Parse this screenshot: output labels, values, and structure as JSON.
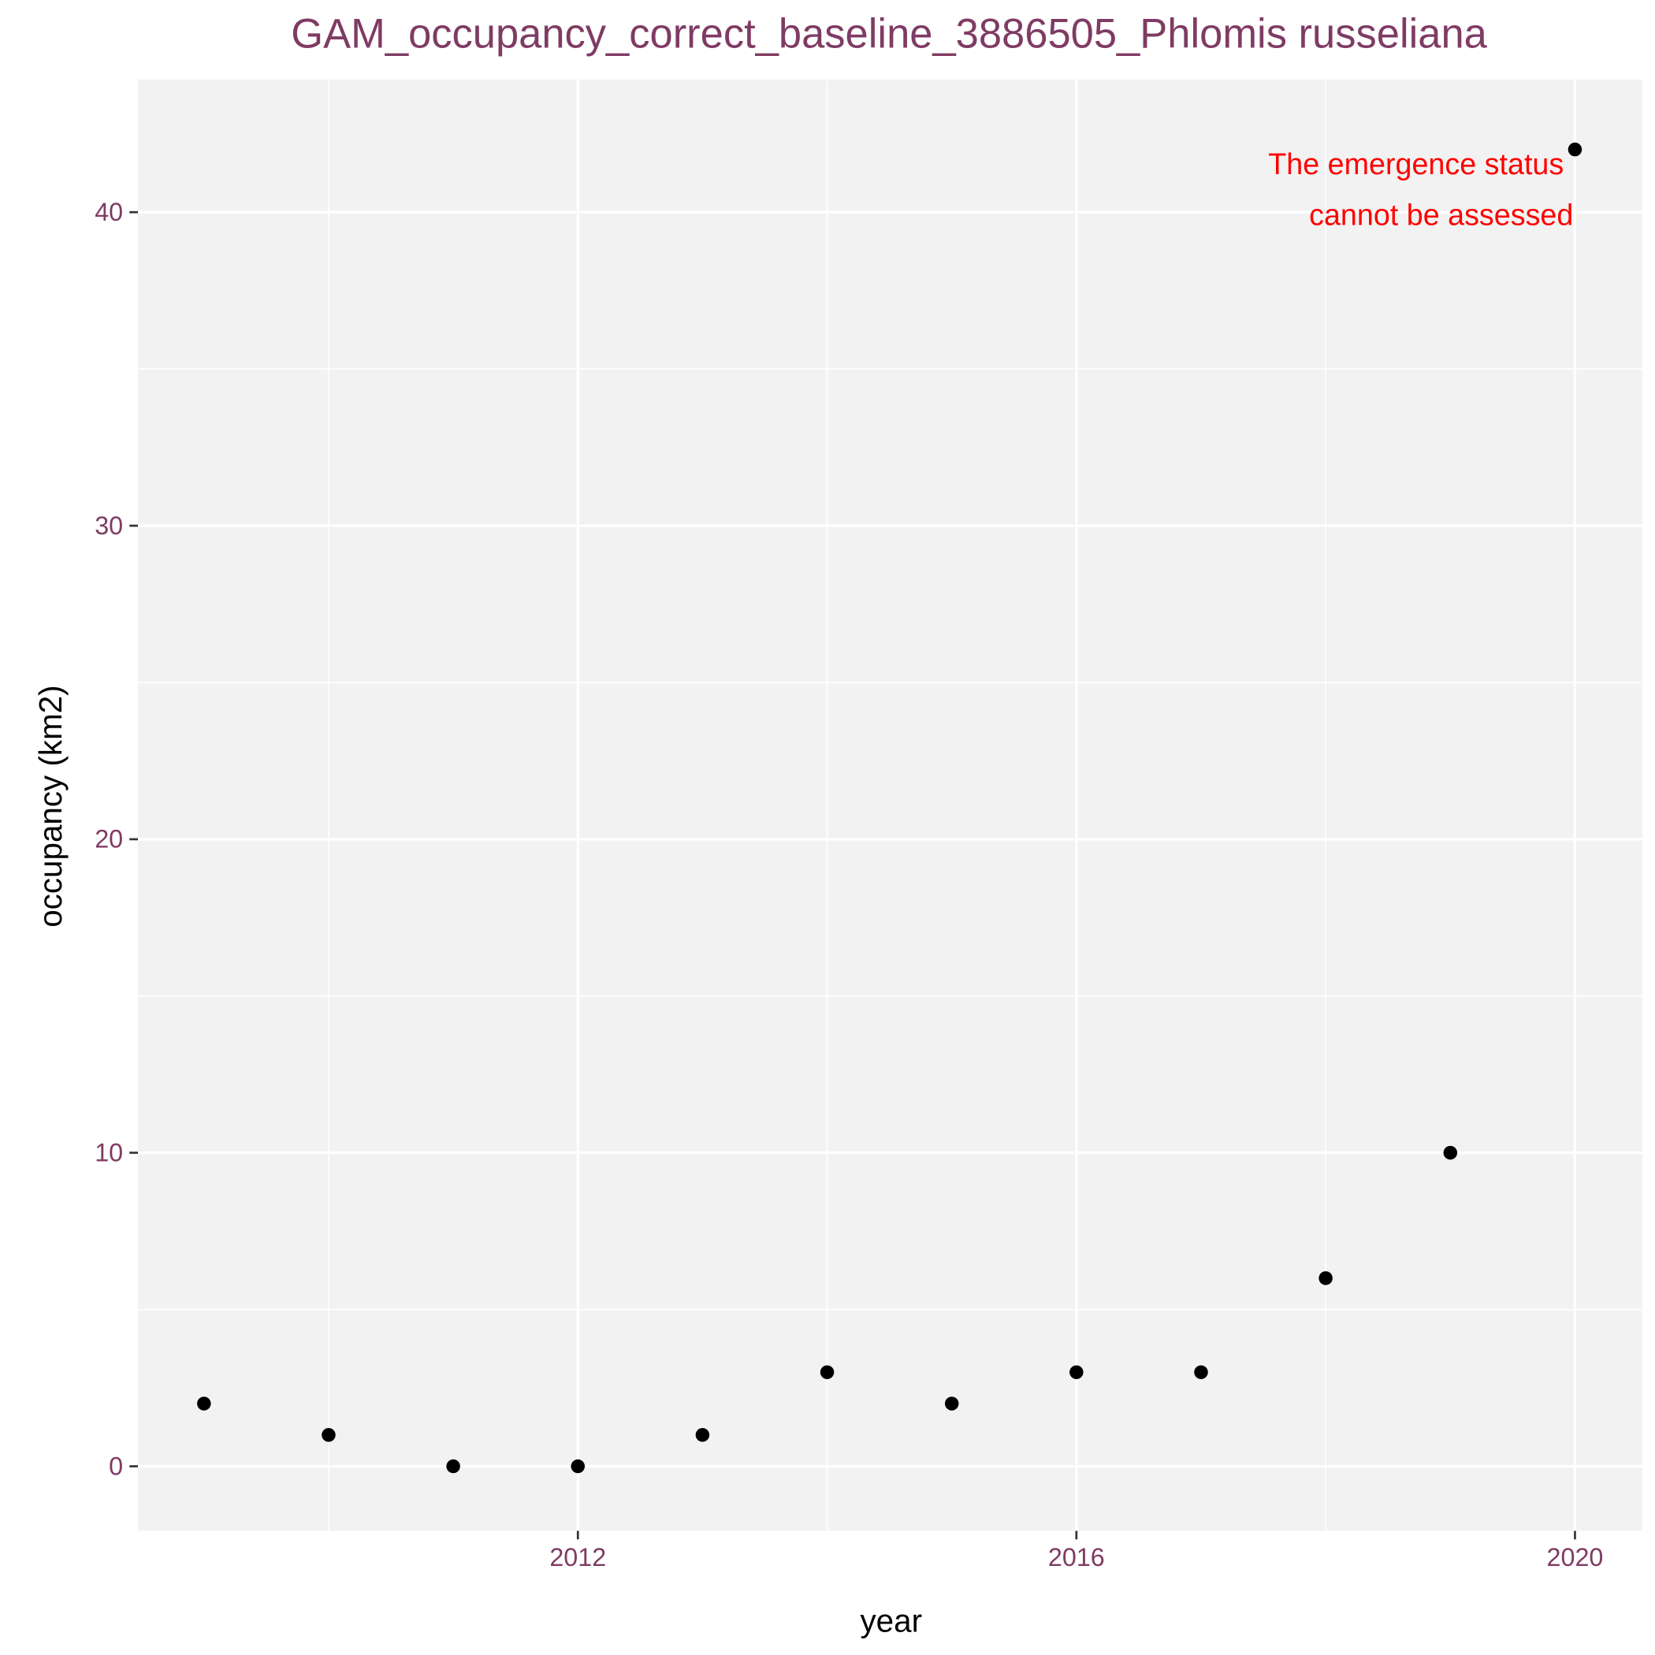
{
  "chart_data": {
    "type": "scatter",
    "title": "GAM_occupancy_correct_baseline_3886505_Phlomis russeliana",
    "x_label": "year",
    "y_label": "occupancy (km2)",
    "annotation": [
      "The emergence status",
      "cannot be assessed"
    ],
    "annotation_color": "#ff0000",
    "x": [
      2009,
      2010,
      2011,
      2012,
      2013,
      2014,
      2015,
      2016,
      2017,
      2018,
      2019,
      2020
    ],
    "series": [
      {
        "color": "#000000",
        "values": [
          2,
          1,
          0,
          0,
          1,
          3,
          2,
          3,
          3,
          6,
          10,
          42
        ]
      }
    ],
    "xlim": [
      2008.47,
      2020.54
    ],
    "ylim": [
      -2.06,
      44.23
    ],
    "xticks": [
      2012,
      2016,
      2020
    ],
    "yticks": [
      0,
      10,
      20,
      30,
      40
    ],
    "x_minor_breaks": [
      2010,
      2014,
      2018
    ],
    "y_minor_breaks": [
      5,
      15,
      25,
      35
    ],
    "grid": true,
    "panel_color": "#f2f2f2",
    "text_color": "#7f3b63"
  }
}
